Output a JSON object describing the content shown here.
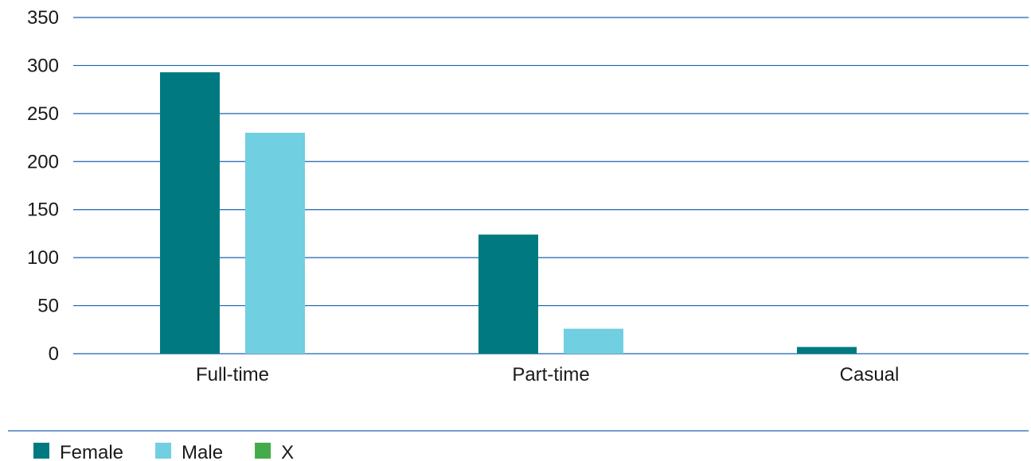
{
  "chart_data": {
    "type": "bar",
    "categories": [
      "Full-time",
      "Part-time",
      "Casual"
    ],
    "series": [
      {
        "name": "Female",
        "values": [
          293,
          124,
          7
        ],
        "color": "#007A80"
      },
      {
        "name": "Male",
        "values": [
          230,
          26,
          0
        ],
        "color": "#70CFE0"
      },
      {
        "name": "X",
        "values": [
          0,
          0,
          0
        ],
        "color": "#44AA4A"
      }
    ],
    "title": "",
    "xlabel": "",
    "ylabel": "",
    "ylim": [
      0,
      350
    ],
    "yticks": [
      0,
      50,
      100,
      150,
      200,
      250,
      300,
      350
    ],
    "grid": true,
    "gridline_color": "#1B63B0",
    "legend_position": "bottom-left"
  }
}
